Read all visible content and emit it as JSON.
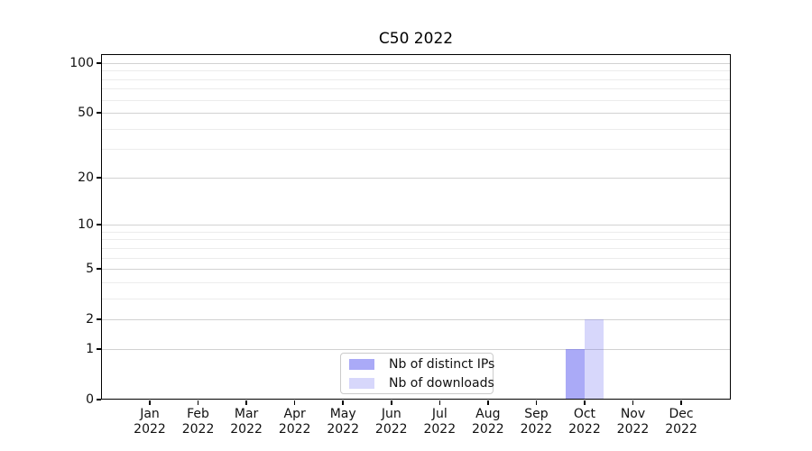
{
  "figure": {
    "background": "#ffffff"
  },
  "chart_data": {
    "type": "bar",
    "title": "C50 2022",
    "categories": [
      {
        "month": "Jan",
        "year": "2022"
      },
      {
        "month": "Feb",
        "year": "2022"
      },
      {
        "month": "Mar",
        "year": "2022"
      },
      {
        "month": "Apr",
        "year": "2022"
      },
      {
        "month": "May",
        "year": "2022"
      },
      {
        "month": "Jun",
        "year": "2022"
      },
      {
        "month": "Jul",
        "year": "2022"
      },
      {
        "month": "Aug",
        "year": "2022"
      },
      {
        "month": "Sep",
        "year": "2022"
      },
      {
        "month": "Oct",
        "year": "2022"
      },
      {
        "month": "Nov",
        "year": "2022"
      },
      {
        "month": "Dec",
        "year": "2022"
      }
    ],
    "series": [
      {
        "name": "Nb of distinct IPs",
        "color": "#6464F08C",
        "values": [
          0,
          0,
          0,
          0,
          0,
          0,
          0,
          0,
          0,
          1,
          0,
          0
        ]
      },
      {
        "name": "Nb of downloads",
        "color": "#6464F042",
        "values": [
          0,
          0,
          0,
          0,
          0,
          0,
          0,
          0,
          0,
          2,
          0,
          0
        ]
      }
    ],
    "y_axis": {
      "scale": "log1p",
      "major_ticks": [
        0,
        1,
        2,
        5,
        10,
        20,
        50,
        100
      ],
      "minor_gridlines": [
        3,
        4,
        6,
        7,
        8,
        9,
        30,
        40,
        60,
        70,
        80,
        90
      ],
      "ylim": [
        0,
        112
      ]
    },
    "grid": {
      "on": true,
      "major_color": "#d2d2d2",
      "minor_color": "#ececec"
    },
    "legend": {
      "position": "lower center"
    }
  }
}
